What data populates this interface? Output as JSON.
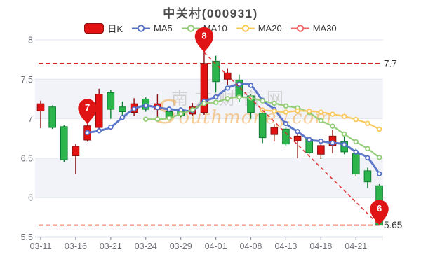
{
  "page": {
    "title": "中关村(000931)"
  },
  "legend": {
    "items": [
      {
        "key": "rik",
        "label": "日K",
        "type": "candle",
        "color": "#e21212",
        "border": "#8c0e0e"
      },
      {
        "key": "ma5",
        "label": "MA5",
        "type": "line",
        "color": "#5470c6"
      },
      {
        "key": "ma10",
        "label": "MA10",
        "type": "line",
        "color": "#91cc75"
      },
      {
        "key": "ma20",
        "label": "MA20",
        "type": "line",
        "color": "#fac858"
      },
      {
        "key": "ma30",
        "label": "MA30",
        "type": "line",
        "color": "#ee6666"
      }
    ]
  },
  "watermark": {
    "line1": "南方财富网",
    "line2": "Southmoney.com"
  },
  "chart_data": {
    "type": "candlestick",
    "title": "中关村(000931)",
    "y_axis": {
      "min": 5.5,
      "max": 8,
      "ticks": [
        "8",
        "7.5",
        "7",
        "6.5",
        "6",
        "5.5"
      ],
      "tick_values": [
        8,
        7.5,
        7,
        6.5,
        6,
        5.5
      ]
    },
    "x_axis": {
      "visible_labels": [
        "03-11",
        "03-16",
        "03-21",
        "03-24",
        "03-29",
        "04-01",
        "04-08",
        "04-13",
        "04-18",
        "04-21"
      ],
      "label_interval": 3
    },
    "candles": [
      {
        "d": "03-11",
        "o": 7.1,
        "h": 7.23,
        "l": 6.88,
        "c": 7.19
      },
      {
        "d": "03-14",
        "o": 7.15,
        "h": 7.17,
        "l": 6.87,
        "c": 6.89
      },
      {
        "d": "03-15",
        "o": 6.9,
        "h": 6.92,
        "l": 6.45,
        "c": 6.48
      },
      {
        "d": "03-16",
        "o": 6.53,
        "h": 6.68,
        "l": 6.3,
        "c": 6.65
      },
      {
        "d": "03-17",
        "o": 6.73,
        "h": 6.93,
        "l": 6.71,
        "c": 6.91
      },
      {
        "d": "03-18",
        "o": 6.89,
        "h": 7.38,
        "l": 6.87,
        "c": 7.31
      },
      {
        "d": "03-21",
        "o": 7.33,
        "h": 7.37,
        "l": 7.0,
        "c": 7.12
      },
      {
        "d": "03-22",
        "o": 7.15,
        "h": 7.22,
        "l": 7.02,
        "c": 7.09
      },
      {
        "d": "03-23",
        "o": 7.08,
        "h": 7.26,
        "l": 7.04,
        "c": 7.19
      },
      {
        "d": "03-24",
        "o": 7.25,
        "h": 7.27,
        "l": 7.09,
        "c": 7.12
      },
      {
        "d": "03-25",
        "o": 7.12,
        "h": 7.31,
        "l": 7.0,
        "c": 7.19
      },
      {
        "d": "03-28",
        "o": 7.09,
        "h": 7.12,
        "l": 6.99,
        "c": 7.02
      },
      {
        "d": "03-29",
        "o": 7.11,
        "h": 7.13,
        "l": 7.02,
        "c": 7.04
      },
      {
        "d": "03-30",
        "o": 7.06,
        "h": 7.2,
        "l": 7.04,
        "c": 7.15
      },
      {
        "d": "03-31",
        "o": 7.08,
        "h": 7.84,
        "l": 7.05,
        "c": 7.7
      },
      {
        "d": "04-01",
        "o": 7.73,
        "h": 7.8,
        "l": 7.33,
        "c": 7.47
      },
      {
        "d": "04-06",
        "o": 7.5,
        "h": 7.64,
        "l": 7.43,
        "c": 7.58
      },
      {
        "d": "04-07",
        "o": 7.49,
        "h": 7.56,
        "l": 7.21,
        "c": 7.28
      },
      {
        "d": "04-08",
        "o": 7.29,
        "h": 7.31,
        "l": 7.0,
        "c": 7.08
      },
      {
        "d": "04-11",
        "o": 7.07,
        "h": 7.09,
        "l": 6.69,
        "c": 6.76
      },
      {
        "d": "04-12",
        "o": 6.8,
        "h": 6.93,
        "l": 6.71,
        "c": 6.89
      },
      {
        "d": "04-13",
        "o": 6.87,
        "h": 6.9,
        "l": 6.65,
        "c": 6.68
      },
      {
        "d": "04-14",
        "o": 6.72,
        "h": 6.87,
        "l": 6.5,
        "c": 6.78
      },
      {
        "d": "04-15",
        "o": 6.74,
        "h": 6.76,
        "l": 6.55,
        "c": 6.57
      },
      {
        "d": "04-18",
        "o": 6.55,
        "h": 6.71,
        "l": 6.49,
        "c": 6.66
      },
      {
        "d": "04-19",
        "o": 6.66,
        "h": 6.86,
        "l": 6.56,
        "c": 6.78
      },
      {
        "d": "04-20",
        "o": 6.71,
        "h": 6.78,
        "l": 6.55,
        "c": 6.58
      },
      {
        "d": "04-21",
        "o": 6.56,
        "h": 6.62,
        "l": 6.27,
        "c": 6.3
      },
      {
        "d": "04-22",
        "o": 6.34,
        "h": 6.38,
        "l": 6.12,
        "c": 6.2
      },
      {
        "d": "04-25",
        "o": 6.15,
        "h": 6.17,
        "l": 5.65,
        "c": 5.65
      }
    ],
    "moving_averages": [
      {
        "name": "MA5",
        "period": 5,
        "color": "#5470c6",
        "computed_from": "closes"
      },
      {
        "name": "MA10",
        "period": 10,
        "color": "#91cc75",
        "computed_from": "closes"
      },
      {
        "name": "MA20",
        "period": 20,
        "color": "#fac858",
        "computed_from": "closes"
      },
      {
        "name": "MA30",
        "period": 30,
        "color": "#ee6666",
        "computed_from": "closes"
      }
    ],
    "annotations": {
      "high_line": {
        "value": 7.7,
        "label": "7.7"
      },
      "low_line": {
        "value": 5.65,
        "label": "5.65"
      },
      "trend_line": {
        "from": {
          "index": 14,
          "value": 7.84
        },
        "to": {
          "index": 29,
          "value": 5.65
        }
      },
      "markers": [
        {
          "label": "7",
          "index": 4,
          "value": 6.93
        },
        {
          "label": "8",
          "index": 14,
          "value": 7.84
        },
        {
          "label": "6",
          "index": 29,
          "value": 5.65
        }
      ]
    },
    "colors": {
      "up_fill": "#e21212",
      "up_border": "#8c0e0e",
      "down_fill": "#2bb54c",
      "down_border": "#0e7e31",
      "annotation_red": "#e02222",
      "balloon": "#e01414",
      "band": "#f1f3f9",
      "grid": "#e3e6ef",
      "axis": "#8b919c",
      "axis_label": "#6e7079",
      "annotation_label": "#333333",
      "watermark_gray": "#c7c7c7",
      "watermark_orange": "#f3a642"
    }
  }
}
